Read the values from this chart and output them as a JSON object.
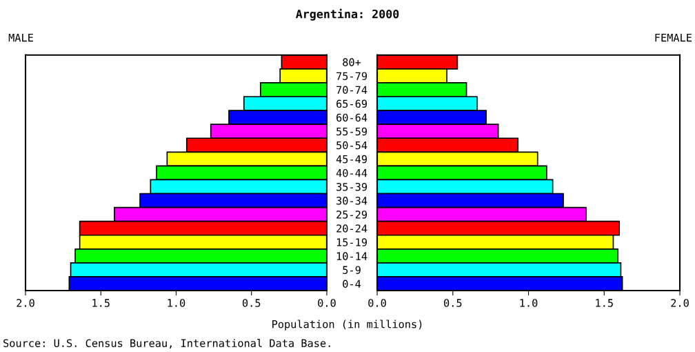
{
  "chart_data": [
    {
      "type": "bar",
      "orientation": "horizontal",
      "title": "Argentina: 2000",
      "subtitle": "MALE",
      "xlabel": "Population (in millions)",
      "annotations": [
        "Source: U.S. Census Bureau, International Data Base."
      ],
      "categories": [
        "80+",
        "75-79",
        "70-74",
        "65-69",
        "60-64",
        "55-59",
        "50-54",
        "45-49",
        "40-44",
        "35-39",
        "30-34",
        "25-29",
        "20-24",
        "15-19",
        "10-14",
        "5-9",
        "0-4"
      ],
      "values": [
        0.3,
        0.31,
        0.44,
        0.55,
        0.65,
        0.77,
        0.93,
        1.06,
        1.13,
        1.17,
        1.24,
        1.41,
        1.64,
        1.64,
        1.67,
        1.7,
        1.71
      ],
      "colors": [
        "#ff0000",
        "#ffff00",
        "#00ff00",
        "#00ffff",
        "#0000ff",
        "#ff00ff",
        "#ff0000",
        "#ffff00",
        "#00ff00",
        "#00ffff",
        "#0000ff",
        "#ff00ff",
        "#ff0000",
        "#ffff00",
        "#00ff00",
        "#00ffff",
        "#0000ff"
      ],
      "xlim": [
        2,
        0
      ],
      "xticks": [
        {
          "value": 2,
          "label": "2.0"
        },
        {
          "value": 1.5,
          "label": "1.5"
        },
        {
          "value": 1,
          "label": "1.0"
        },
        {
          "value": 0.5,
          "label": "0.5"
        },
        {
          "value": 0,
          "label": "0.0"
        }
      ],
      "grid": false,
      "legend": false
    },
    {
      "type": "bar",
      "orientation": "horizontal",
      "subtitle": "FEMALE",
      "tick_labels": "x",
      "categories": [
        "80+",
        "75-79",
        "70-74",
        "65-69",
        "60-64",
        "55-59",
        "50-54",
        "45-49",
        "40-44",
        "35-39",
        "30-34",
        "25-29",
        "20-24",
        "15-19",
        "10-14",
        "5-9",
        "0-4"
      ],
      "values": [
        0.53,
        0.46,
        0.59,
        0.66,
        0.72,
        0.8,
        0.93,
        1.06,
        1.12,
        1.16,
        1.23,
        1.38,
        1.6,
        1.56,
        1.59,
        1.61,
        1.62
      ],
      "colors": [
        "#ff0000",
        "#ffff00",
        "#00ff00",
        "#00ffff",
        "#0000ff",
        "#ff00ff",
        "#ff0000",
        "#ffff00",
        "#00ff00",
        "#00ffff",
        "#0000ff",
        "#ff00ff",
        "#ff0000",
        "#ffff00",
        "#00ff00",
        "#00ffff",
        "#0000ff"
      ],
      "xlim": [
        0,
        2
      ],
      "xticks": [
        {
          "value": 0,
          "label": "0.0"
        },
        {
          "value": 0.5,
          "label": "0.5"
        },
        {
          "value": 1,
          "label": "1.0"
        },
        {
          "value": 1.5,
          "label": "1.5"
        },
        {
          "value": 2,
          "label": "2.0"
        }
      ],
      "grid": false,
      "legend": false
    }
  ]
}
